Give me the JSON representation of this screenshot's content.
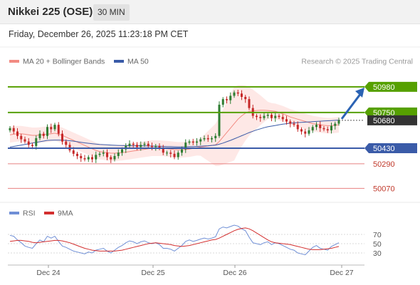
{
  "header": {
    "title": "Nikkei 225 (OSE)",
    "timeframe": "30 MIN"
  },
  "datetime": "Friday, December 26, 2025 11:23:18 PM CET",
  "credit": "Research © 2025 Trading Central",
  "colors": {
    "price_up": "#2e7d32",
    "price_down": "#c62828",
    "ma20": "#f28b82",
    "bollinger_fill": "#fde0dd",
    "ma50": "#3a5ba8",
    "resistance": "#56a000",
    "support": "#3a5ba8",
    "minor": "#e88080",
    "arrow": "#2b63b4",
    "rsi": "#6f8fd6",
    "rsi_ma": "#d32f2f"
  },
  "chart_data": [
    {
      "type": "candlestick",
      "legend": [
        {
          "label": "MA 20 + Bollinger Bands",
          "color": "#f28b82"
        },
        {
          "label": "MA 50",
          "color": "#3a5ba8"
        }
      ],
      "x_ticks": [
        "Dec 24",
        "Dec 25",
        "Dec 26",
        "Dec 27"
      ],
      "ylim": [
        49970,
        51120
      ],
      "levels": [
        {
          "value": 50980,
          "label": "50980",
          "kind": "resistance"
        },
        {
          "value": 50750,
          "label": "50750",
          "kind": "resistance"
        },
        {
          "value": 50680,
          "label": "50680",
          "kind": "last"
        },
        {
          "value": 50430,
          "label": "50430",
          "kind": "support"
        },
        {
          "value": 50290,
          "label": "50290",
          "kind": "minor"
        },
        {
          "value": 50070,
          "label": "50070",
          "kind": "minor"
        }
      ],
      "series": [
        {
          "name": "Close",
          "values": [
            50610,
            50580,
            50540,
            50510,
            50490,
            50460,
            50450,
            50520,
            50560,
            50540,
            50620,
            50600,
            50640,
            50560,
            50490,
            50460,
            50410,
            50380,
            50360,
            50340,
            50330,
            50350,
            50330,
            50370,
            50380,
            50390,
            50350,
            50330,
            50360,
            50390,
            50420,
            50450,
            50470,
            50460,
            50440,
            50460,
            50470,
            50450,
            50440,
            50450,
            50430,
            50390,
            50390,
            50380,
            50350,
            50390,
            50420,
            50480,
            50490,
            50480,
            50490,
            50510,
            50520,
            50510,
            50520,
            50540,
            50820,
            50870,
            50860,
            50900,
            50930,
            50920,
            50890,
            50870,
            50790,
            50720,
            50710,
            50700,
            50720,
            50730,
            50700,
            50720,
            50710,
            50690,
            50670,
            50650,
            50640,
            50600,
            50580,
            50560,
            50590,
            50620,
            50640,
            50610,
            50600,
            50590,
            50630,
            50650,
            50680
          ]
        },
        {
          "name": "MA 20",
          "values": [
            50550,
            50555,
            50560,
            50560,
            50555,
            50550,
            50545,
            50545,
            50548,
            50552,
            50555,
            50560,
            50565,
            50555,
            50545,
            50530,
            50515,
            50500,
            50485,
            50470,
            50455,
            50440,
            50425,
            50410,
            50400,
            50395,
            50390,
            50385,
            50385,
            50388,
            50390,
            50395,
            50400,
            50405,
            50410,
            50415,
            50420,
            50425,
            50430,
            50430,
            50430,
            50428,
            50425,
            50422,
            50418,
            50415,
            50415,
            50418,
            50422,
            50428,
            50435,
            50440,
            50445,
            50450,
            50455,
            50460,
            50490,
            50530,
            50570,
            50610,
            50650,
            50690,
            50720,
            50745,
            50760,
            50765,
            50768,
            50770,
            50770,
            50768,
            50765,
            50760,
            50750,
            50738,
            50725,
            50710,
            50700,
            50690,
            50680,
            50670,
            50660,
            50650,
            50645,
            50640,
            50635,
            50632,
            50632,
            50636,
            50640
          ]
        },
        {
          "name": "MA 50",
          "values": [
            50440,
            50446,
            50452,
            50458,
            50464,
            50470,
            50476,
            50482,
            50488,
            50494,
            50500,
            50502,
            50503,
            50503,
            50502,
            50500,
            50497,
            50493,
            50488,
            50483,
            50478,
            50474,
            50470,
            50467,
            50464,
            50462,
            50460,
            50458,
            50456,
            50455,
            50454,
            50453,
            50452,
            50452,
            50452,
            50452,
            50451,
            50450,
            50449,
            50448,
            50447,
            50446,
            50445,
            50444,
            50443,
            50442,
            50442,
            50443,
            50444,
            50445,
            50446,
            50448,
            50450,
            50452,
            50455,
            50458,
            50466,
            50476,
            50488,
            50500,
            50514,
            50528,
            50542,
            50556,
            50570,
            50582,
            50594,
            50604,
            50614,
            50622,
            50628,
            50634,
            50640,
            50645,
            50650,
            50654,
            50657,
            50660,
            50662,
            50664,
            50666,
            50668,
            50670,
            50672,
            50674,
            50676,
            50678,
            50680,
            50682
          ]
        }
      ]
    },
    {
      "type": "line",
      "legend": [
        {
          "label": "RSI",
          "color": "#6f8fd6"
        },
        {
          "label": "9MA",
          "color": "#d32f2f"
        }
      ],
      "y_ticks": [
        70,
        50,
        30
      ],
      "ylim": [
        10,
        90
      ],
      "series": [
        {
          "name": "RSI",
          "values": [
            68,
            66,
            58,
            52,
            45,
            42,
            40,
            50,
            58,
            54,
            66,
            62,
            66,
            55,
            45,
            42,
            38,
            34,
            32,
            30,
            28,
            32,
            30,
            36,
            38,
            40,
            34,
            30,
            36,
            42,
            46,
            52,
            56,
            54,
            50,
            54,
            56,
            52,
            50,
            52,
            48,
            40,
            40,
            38,
            34,
            40,
            46,
            55,
            58,
            55,
            57,
            60,
            62,
            60,
            62,
            65,
            82,
            86,
            84,
            87,
            90,
            88,
            82,
            78,
            64,
            52,
            50,
            48,
            52,
            54,
            48,
            52,
            50,
            46,
            42,
            38,
            36,
            30,
            28,
            26,
            34,
            42,
            46,
            40,
            38,
            36,
            44,
            48,
            52
          ]
        },
        {
          "name": "9MA",
          "values": [
            55,
            56,
            57,
            57,
            56,
            55,
            53,
            52,
            53,
            54,
            55,
            56,
            57,
            57,
            56,
            54,
            52,
            49,
            46,
            43,
            40,
            38,
            36,
            35,
            34,
            34,
            34,
            34,
            34,
            35,
            36,
            38,
            40,
            42,
            44,
            46,
            48,
            50,
            51,
            52,
            51,
            50,
            49,
            48,
            46,
            45,
            44,
            45,
            46,
            48,
            50,
            52,
            54,
            56,
            58,
            59,
            62,
            66,
            70,
            74,
            78,
            81,
            83,
            84,
            82,
            78,
            73,
            68,
            63,
            58,
            54,
            52,
            51,
            50,
            49,
            48,
            46,
            44,
            42,
            40,
            38,
            37,
            37,
            37,
            38,
            39,
            40,
            42,
            44
          ]
        }
      ]
    }
  ]
}
